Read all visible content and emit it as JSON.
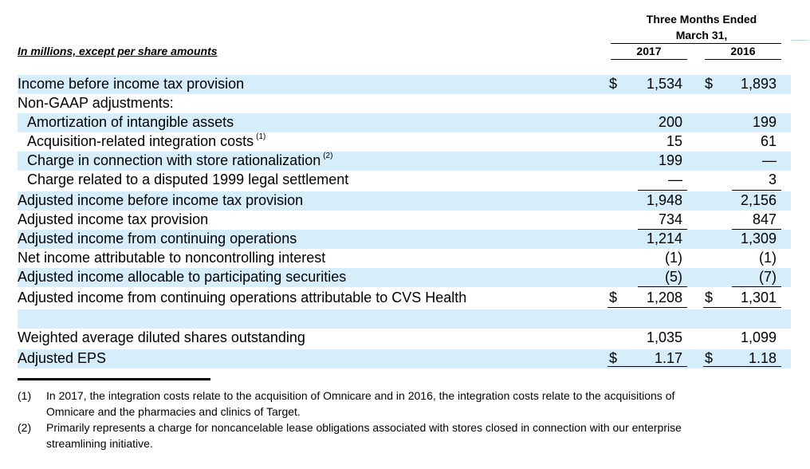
{
  "header": {
    "period_line1": "Three Months Ended",
    "period_line2": "March 31,",
    "col_2017": "2017",
    "col_2016": "2016",
    "units_label": "In millions, except per share amounts"
  },
  "rows": [
    {
      "label": "Income before income tax provision",
      "dollar_a": "$",
      "v2017": "1,534",
      "dollar_b": "$",
      "v2016": "1,893",
      "note": ""
    },
    {
      "label": "Non-GAAP adjustments:",
      "dollar_a": "",
      "v2017": "",
      "dollar_b": "",
      "v2016": "",
      "note": ""
    },
    {
      "label": "Amortization of intangible assets",
      "dollar_a": "",
      "v2017": "200",
      "dollar_b": "",
      "v2016": "199",
      "note": ""
    },
    {
      "label": "Acquisition-related integration costs",
      "dollar_a": "",
      "v2017": "15",
      "dollar_b": "",
      "v2016": "61",
      "note": "(1)"
    },
    {
      "label": "Charge in connection with store rationalization",
      "dollar_a": "",
      "v2017": "199",
      "dollar_b": "",
      "v2016": "—",
      "note": "(2)"
    },
    {
      "label": "Charge related to a disputed 1999 legal settlement",
      "dollar_a": "",
      "v2017": "—",
      "dollar_b": "",
      "v2016": "3",
      "note": ""
    },
    {
      "label": "Adjusted income before income tax provision",
      "dollar_a": "",
      "v2017": "1,948",
      "dollar_b": "",
      "v2016": "2,156",
      "note": ""
    },
    {
      "label": "Adjusted income tax provision",
      "dollar_a": "",
      "v2017": "734",
      "dollar_b": "",
      "v2016": "847",
      "note": ""
    },
    {
      "label": "Adjusted income from continuing operations",
      "dollar_a": "",
      "v2017": "1,214",
      "dollar_b": "",
      "v2016": "1,309",
      "note": ""
    },
    {
      "label": "Net income attributable to noncontrolling interest",
      "dollar_a": "",
      "v2017": "(1)",
      "dollar_b": "",
      "v2016": "(1)",
      "note": ""
    },
    {
      "label": "Adjusted income allocable to participating securities",
      "dollar_a": "",
      "v2017": "(5)",
      "dollar_b": "",
      "v2016": "(7)",
      "note": ""
    },
    {
      "label": "Adjusted income from continuing operations attributable to CVS Health",
      "dollar_a": "$",
      "v2017": "1,208",
      "dollar_b": "$",
      "v2016": "1,301",
      "note": ""
    },
    {
      "label": "",
      "dollar_a": "",
      "v2017": "",
      "dollar_b": "",
      "v2016": "",
      "note": ""
    },
    {
      "label": "Weighted average diluted shares outstanding",
      "dollar_a": "",
      "v2017": "1,035",
      "dollar_b": "",
      "v2016": "1,099",
      "note": ""
    },
    {
      "label": "Adjusted EPS",
      "dollar_a": "$",
      "v2017": "1.17",
      "dollar_b": "$",
      "v2016": "1.18",
      "note": ""
    }
  ],
  "footnotes": [
    {
      "num": "(1)",
      "line1": "In 2017, the integration costs relate to the acquisition of Omnicare and in 2016, the integration costs relate to the acquisitions of",
      "line2": "Omnicare and the pharmacies and clinics of Target."
    },
    {
      "num": "(2)",
      "line1": "Primarily represents a charge for noncancelable lease obligations associated with stores closed in connection with our enterprise",
      "line2": "streamlining initiative."
    }
  ],
  "colors": {
    "row_shade": "#d6eefa",
    "text": "#000000"
  }
}
